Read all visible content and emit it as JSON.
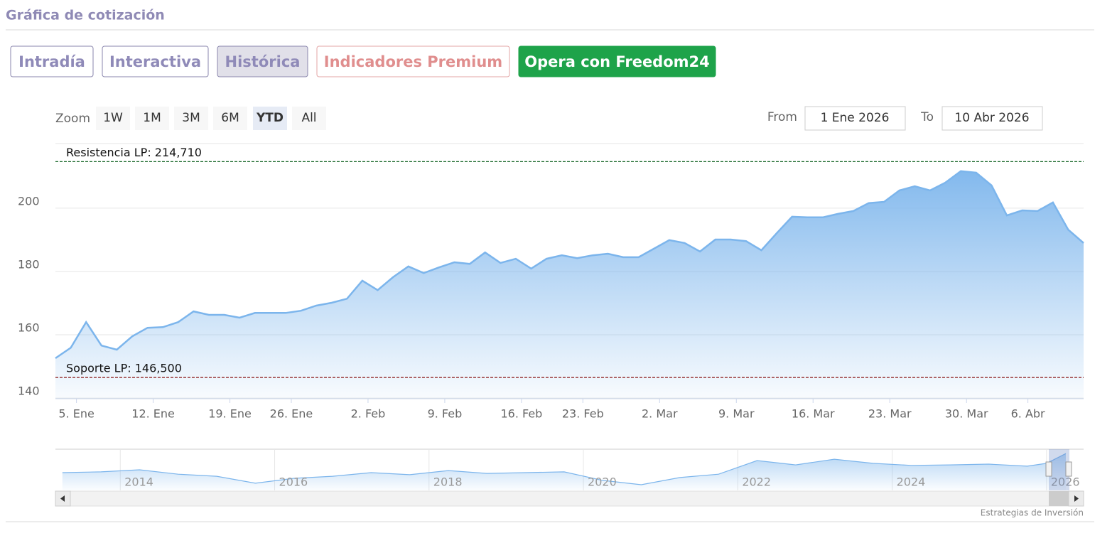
{
  "header": {
    "title": "Gráfica de cotización"
  },
  "tabs": [
    "Intradía",
    "Interactiva",
    "Histórica",
    "Indicadores Premium",
    "Opera con Freedom24"
  ],
  "active_tab": 2,
  "range_selector": {
    "zoom_label": "Zoom",
    "buttons": [
      "1W",
      "1M",
      "3M",
      "6M",
      "YTD",
      "All"
    ],
    "active": 4,
    "from_label": "From",
    "from": "1 Ene 2026",
    "to_label": "To",
    "to": "10 Abr 2026"
  },
  "chart_data": {
    "type": "area",
    "color": "#7cb5ec",
    "grid": true,
    "x": [
      "2026-01-02",
      "2026-01-05",
      "2026-01-06",
      "2026-01-07",
      "2026-01-08",
      "2026-01-09",
      "2026-01-12",
      "2026-01-13",
      "2026-01-14",
      "2026-01-15",
      "2026-01-16",
      "2026-01-20",
      "2026-01-21",
      "2026-01-22",
      "2026-01-23",
      "2026-01-26",
      "2026-01-27",
      "2026-01-28",
      "2026-01-29",
      "2026-01-30",
      "2026-02-02",
      "2026-02-03",
      "2026-02-04",
      "2026-02-05",
      "2026-02-06",
      "2026-02-09",
      "2026-02-10",
      "2026-02-11",
      "2026-02-12",
      "2026-02-13",
      "2026-02-17",
      "2026-02-18",
      "2026-02-19",
      "2026-02-20",
      "2026-02-23",
      "2026-02-24",
      "2026-02-25",
      "2026-02-26",
      "2026-02-27",
      "2026-03-02",
      "2026-03-03",
      "2026-03-04",
      "2026-03-05",
      "2026-03-06",
      "2026-03-09",
      "2026-03-10",
      "2026-03-11",
      "2026-03-12",
      "2026-03-13",
      "2026-03-16",
      "2026-03-17",
      "2026-03-18",
      "2026-03-19",
      "2026-03-20",
      "2026-03-23",
      "2026-03-24",
      "2026-03-25",
      "2026-03-26",
      "2026-03-27",
      "2026-03-30",
      "2026-03-31",
      "2026-04-01",
      "2026-04-02",
      "2026-04-06",
      "2026-04-07",
      "2026-04-08",
      "2026-04-09",
      "2026-04-10"
    ],
    "values": [
      152.6,
      155.9,
      164,
      156.6,
      155.3,
      159.5,
      162.2,
      162.4,
      164,
      167.4,
      166.3,
      166.3,
      165.4,
      166.9,
      166.9,
      166.9,
      167.6,
      169.2,
      170.1,
      171.4,
      177.1,
      174.1,
      178.2,
      181.6,
      179.5,
      181.3,
      182.9,
      182.4,
      186,
      182.7,
      184,
      180.9,
      184,
      185.1,
      184.2,
      185.1,
      185.6,
      184.5,
      184.5,
      187.2,
      189.9,
      189,
      186.3,
      190.1,
      190.1,
      189.6,
      186.7,
      192.1,
      197.3,
      197.1,
      197.1,
      198.2,
      199.1,
      201.6,
      202,
      205.6,
      206.9,
      205.6,
      208.1,
      211.7,
      211.2,
      207.2,
      197.7,
      199.3,
      199.1,
      201.8,
      193.2,
      189
    ],
    "ylim": [
      139.8,
      220.4
    ],
    "yticks": [
      140,
      160,
      180,
      200
    ],
    "xticks": [
      {
        "value": "2026-01-05",
        "label": "5. Ene"
      },
      {
        "value": "2026-01-12",
        "label": "12. Ene"
      },
      {
        "value": "2026-01-19",
        "label": "19. Ene"
      },
      {
        "value": "2026-01-26",
        "label": "26. Ene"
      },
      {
        "value": "2026-02-02",
        "label": "2. Feb"
      },
      {
        "value": "2026-02-09",
        "label": "9. Feb"
      },
      {
        "value": "2026-02-16",
        "label": "16. Feb"
      },
      {
        "value": "2026-02-23",
        "label": "23. Feb"
      },
      {
        "value": "2026-03-02",
        "label": "2. Mar"
      },
      {
        "value": "2026-03-09",
        "label": "9. Mar"
      },
      {
        "value": "2026-03-16",
        "label": "16. Mar"
      },
      {
        "value": "2026-03-23",
        "label": "23. Mar"
      },
      {
        "value": "2026-03-30",
        "label": "30. Mar"
      },
      {
        "value": "2026-04-06",
        "label": "6. Abr"
      }
    ],
    "reference_lines": [
      {
        "label": "Resistencia LP: 214,710",
        "value": 214.71,
        "color": "#1e6b2e"
      },
      {
        "label": "Soporte LP: 146,500",
        "value": 146.5,
        "color": "#8b1a1a"
      }
    ],
    "navigator": {
      "x": [
        2013.25,
        2013.75,
        2014.25,
        2014.75,
        2015.25,
        2015.75,
        2016.25,
        2016.75,
        2017.25,
        2017.75,
        2018.25,
        2018.75,
        2019.25,
        2019.75,
        2020.25,
        2020.75,
        2021.25,
        2021.75,
        2022.25,
        2022.75,
        2023.25,
        2023.75,
        2024.25,
        2024.75,
        2025.25,
        2025.75,
        2026,
        2026.25
      ],
      "values": [
        129,
        132,
        140,
        123,
        115,
        88,
        107,
        115,
        129,
        121,
        137,
        126,
        129,
        132,
        99,
        82,
        110,
        123,
        176,
        159,
        181,
        165,
        157,
        159,
        162,
        154,
        165,
        203
      ],
      "xlim": [
        2013.16,
        2026.48
      ],
      "ylim": [
        60,
        220
      ],
      "xticks": [
        2014,
        2016,
        2018,
        2020,
        2022,
        2024,
        2026
      ]
    }
  },
  "credits": "Estrategias de Inversión"
}
